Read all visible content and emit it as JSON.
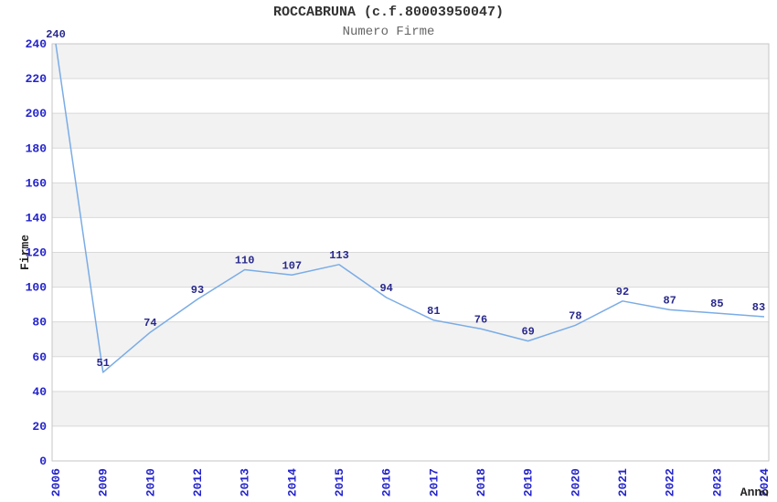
{
  "header": {
    "title": "ROCCABRUNA (c.f.80003950047)",
    "subtitle": "Numero Firme"
  },
  "chart_data": {
    "type": "line",
    "title": "ROCCABRUNA (c.f.80003950047)",
    "subtitle": "Numero Firme",
    "xlabel": "Anno",
    "ylabel": "Firme",
    "categories": [
      "2006",
      "2009",
      "2010",
      "2012",
      "2013",
      "2014",
      "2015",
      "2016",
      "2017",
      "2018",
      "2019",
      "2020",
      "2021",
      "2022",
      "2023",
      "2024"
    ],
    "values": [
      240,
      51,
      74,
      93,
      110,
      107,
      113,
      94,
      81,
      76,
      69,
      78,
      92,
      87,
      85,
      83
    ],
    "ylim": [
      0,
      240
    ],
    "ytick_step": 20,
    "yticks": [
      0,
      20,
      40,
      60,
      80,
      100,
      120,
      140,
      160,
      180,
      200,
      220,
      240
    ],
    "legend": "none",
    "grid": "horizontal-alternating-bands",
    "point_labels_visible": true,
    "colors": {
      "line": "#7aace6",
      "point_label": "#28288c",
      "tick_label": "#2424cc",
      "band_gray": "#f2f2f2",
      "gridline": "#d9d9d9",
      "plot_border": "#c6c6c6",
      "title": "#333333",
      "subtitle": "#666666",
      "axis_title": "#222222",
      "background": "#ffffff"
    }
  }
}
